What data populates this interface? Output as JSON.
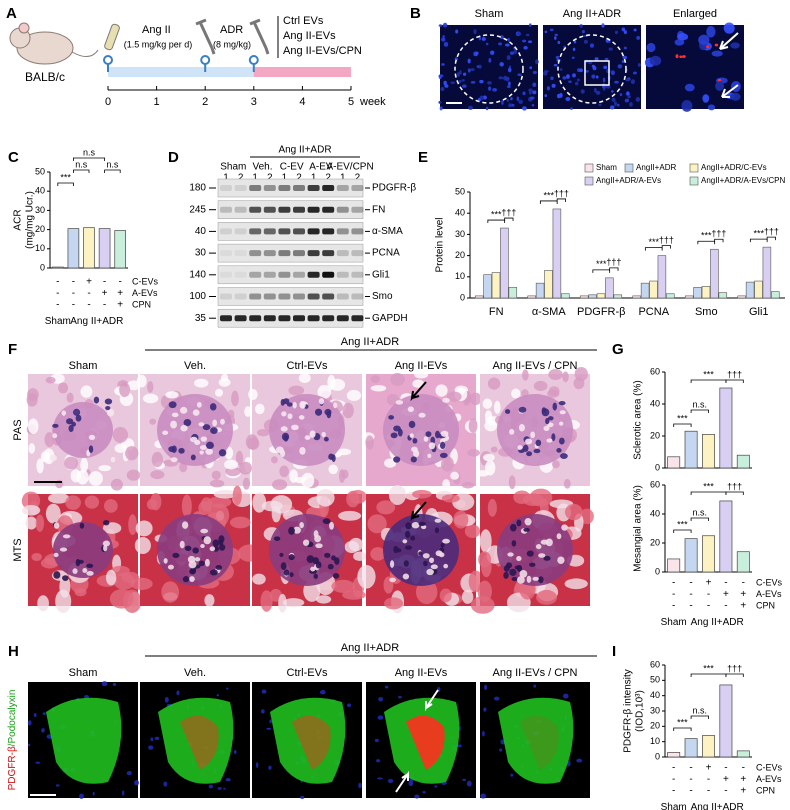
{
  "schematic": {
    "label": "A",
    "animal": "BALB/c",
    "agents": [
      {
        "name": "Ang II",
        "dose": "(1.5 mg/kg per d)"
      },
      {
        "name": "ADR",
        "dose": "(8 mg/kg)"
      }
    ],
    "treatments": [
      "Ctrl EVs",
      "Ang II-EVs",
      "Ang II-EVs/CPN"
    ],
    "timeline": [
      0,
      1,
      2,
      3,
      4,
      5
    ],
    "unit": "week"
  },
  "fish": {
    "label": "B",
    "columns": [
      "Sham",
      "Ang II+ADR",
      "Enlarged"
    ]
  },
  "blot": {
    "label": "D",
    "group": "Ang II+ADR",
    "lanes": [
      "Sham",
      "Veh.",
      "C-EV",
      "A-EV",
      "A-EV/CPN"
    ],
    "replicates": [
      "1",
      "2"
    ],
    "rows": [
      {
        "mw": 180,
        "protein": "PDGFR-β"
      },
      {
        "mw": 245,
        "protein": "FN"
      },
      {
        "mw": 40,
        "protein": "α-SMA"
      },
      {
        "mw": 30,
        "protein": "PCNA"
      },
      {
        "mw": 140,
        "protein": "Gli1"
      },
      {
        "mw": 100,
        "protein": "Smo"
      },
      {
        "mw": 35,
        "protein": "GAPDH"
      }
    ]
  },
  "histology": {
    "label": "F",
    "group": "Ang II+ADR",
    "columns": [
      "Sham",
      "Veh.",
      "Ctrl-EVs",
      "Ang II-EVs",
      "Ang II-EVs / CPN"
    ],
    "stains": [
      "PAS",
      "MTS"
    ]
  },
  "immunofluorescence": {
    "label": "H",
    "group": "Ang II+ADR",
    "columns": [
      "Sham",
      "Veh.",
      "Ctrl-EVs",
      "Ang II-EVs",
      "Ang II-EVs / CPN"
    ],
    "markers": [
      "PDGFR-β",
      "/Podocalyxin"
    ]
  },
  "chart_data": [
    {
      "type": "bar",
      "label": "C",
      "ylabel": [
        "ACR",
        "(mg/mg Ucr.)"
      ],
      "values": [
        0.5,
        20.5,
        21,
        20.5,
        19.5
      ],
      "colors": [
        "#ffffff",
        "#c5d6f0",
        "#fdf3c2",
        "#d8cff2",
        "#c8eedc"
      ],
      "ylim": [
        0,
        50
      ],
      "yticks": [
        0,
        10,
        20,
        30,
        40,
        50
      ],
      "annotations": [
        "***",
        "n.s",
        "n.s",
        "n.s"
      ],
      "conditions": [
        {
          "label": "C-EVs",
          "signs": [
            "-",
            "-",
            "+",
            "-",
            "-"
          ]
        },
        {
          "label": "A-EVs",
          "signs": [
            "-",
            "-",
            "-",
            "+",
            "+"
          ]
        },
        {
          "label": "CPN",
          "signs": [
            "-",
            "-",
            "-",
            "-",
            "+"
          ]
        }
      ],
      "groups": [
        "Sham",
        "Ang II+ADR"
      ]
    },
    {
      "type": "bar",
      "label": "E",
      "ylabel": "Protein level",
      "categories": [
        "FN",
        "α-SMA",
        "PDGFR-β",
        "PCNA",
        "Smo",
        "Gli1"
      ],
      "series": [
        {
          "name": "Sham",
          "color": "#fbe3ea",
          "values": [
            1,
            1,
            1,
            1,
            1,
            1
          ]
        },
        {
          "name": "AngII+ADR",
          "color": "#c5d6f0",
          "values": [
            11,
            7,
            1.5,
            7,
            5,
            7.5
          ]
        },
        {
          "name": "AngII+ADR/C-EVs",
          "color": "#fdf3c2",
          "values": [
            12,
            13,
            2,
            8,
            5.5,
            8
          ]
        },
        {
          "name": "AngII+ADR/A-EVs",
          "color": "#d8cff2",
          "values": [
            33,
            42,
            9.5,
            20,
            23,
            24
          ]
        },
        {
          "name": "AngII+ADR/A-EVs/CPN",
          "color": "#c8eedc",
          "values": [
            5,
            2,
            1.5,
            2,
            2.5,
            3
          ]
        }
      ],
      "ylim": [
        0,
        50
      ],
      "yticks": [
        0,
        10,
        20,
        30,
        40,
        50
      ],
      "annotations": [
        "***",
        "†††"
      ]
    },
    {
      "type": "bar",
      "label": "G",
      "ylabel": "Sclerotic area (%)",
      "values": [
        7,
        23,
        21,
        50,
        8
      ],
      "colors": [
        "#fbe3ea",
        "#c5d6f0",
        "#fdf3c2",
        "#d8cff2",
        "#c8eedc"
      ],
      "ylim": [
        0,
        60
      ],
      "yticks": [
        0,
        20,
        40,
        60
      ],
      "annotations": [
        "***",
        "n.s.",
        "***",
        "†††"
      ]
    },
    {
      "type": "bar",
      "ylabel": "Mesangial area (%)",
      "values": [
        9,
        23,
        25,
        49,
        14
      ],
      "colors": [
        "#fbe3ea",
        "#c5d6f0",
        "#fdf3c2",
        "#d8cff2",
        "#c8eedc"
      ],
      "ylim": [
        0,
        60
      ],
      "yticks": [
        0,
        20,
        40,
        60
      ],
      "annotations": [
        "***",
        "n.s.",
        "***",
        "†††"
      ],
      "conditions": [
        {
          "label": "C-EVs",
          "signs": [
            "-",
            "-",
            "+",
            "-",
            "-"
          ]
        },
        {
          "label": "A-EVs",
          "signs": [
            "-",
            "-",
            "-",
            "+",
            "+"
          ]
        },
        {
          "label": "CPN",
          "signs": [
            "-",
            "-",
            "-",
            "-",
            "+"
          ]
        }
      ],
      "groups": [
        "Sham",
        "Ang II+ADR"
      ]
    },
    {
      "type": "bar",
      "label": "I",
      "ylabel": [
        "PDGFR-β intensity",
        "(IOD,10³)"
      ],
      "values": [
        3,
        12,
        14,
        47,
        4
      ],
      "colors": [
        "#fbe3ea",
        "#c5d6f0",
        "#fdf3c2",
        "#d8cff2",
        "#c8eedc"
      ],
      "ylim": [
        0,
        60
      ],
      "yticks": [
        0,
        10,
        20,
        30,
        40,
        50,
        60
      ],
      "annotations": [
        "***",
        "n.s.",
        "***",
        "†††"
      ],
      "conditions": [
        {
          "label": "C-EVs",
          "signs": [
            "-",
            "-",
            "+",
            "-",
            "-"
          ]
        },
        {
          "label": "A-EVs",
          "signs": [
            "-",
            "-",
            "-",
            "+",
            "+"
          ]
        },
        {
          "label": "CPN",
          "signs": [
            "-",
            "-",
            "-",
            "-",
            "+"
          ]
        }
      ],
      "groups": [
        "Sham",
        "Ang II+ADR"
      ]
    }
  ]
}
